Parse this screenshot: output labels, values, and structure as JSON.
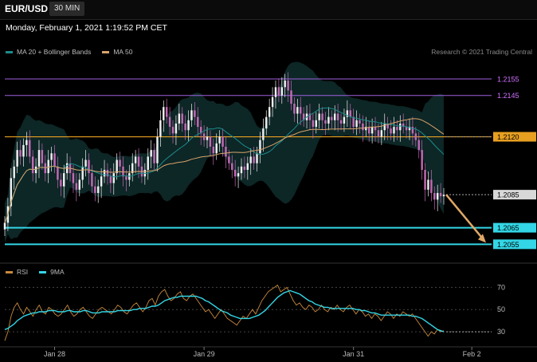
{
  "header": {
    "symbol": "EUR/USD",
    "timeframe": "30 MIN"
  },
  "datetime": "Monday, February 1, 2021 1:19:52 PM CET",
  "legend_main": [
    {
      "label": "MA 20 + Bollinger Bands",
      "color": "#1c8c8c"
    },
    {
      "label": "MA 50",
      "color": "#d9a46a"
    }
  ],
  "legend_rsi": [
    {
      "label": "RSI",
      "color": "#c98a3c"
    },
    {
      "label": "9MA",
      "color": "#33d6e6"
    }
  ],
  "credit": "Research © 2021 Trading Central",
  "colors": {
    "bull": "#f0f0f0",
    "bear": "#c46ab6",
    "band": "#0e2a2a",
    "ma20": "#1c8c8c",
    "ma50": "#d9a46a",
    "resistance_high": "#a060e0",
    "pivot": "#e8a020",
    "support": "#33d6e6",
    "arrow": "#e0a868"
  },
  "chart_data": [
    {
      "type": "candlestick",
      "ylim": [
        1.2046,
        1.2168
      ],
      "x_ticks": [
        {
          "label": "Jan 28",
          "index": 16
        },
        {
          "label": "Jan 29",
          "index": 64
        },
        {
          "label": "Jan 31",
          "index": 112
        },
        {
          "label": "Feb 2",
          "index": 150
        }
      ],
      "levels": [
        {
          "value": 1.2155,
          "label": "1.2155",
          "kind": "resistance_high"
        },
        {
          "value": 1.2145,
          "label": "1.2145",
          "kind": "resistance_high"
        },
        {
          "value": 1.212,
          "label": "1.2120",
          "kind": "pivot"
        },
        {
          "value": 1.2085,
          "label": "1.2085",
          "kind": "current"
        },
        {
          "value": 1.2065,
          "label": "1.2065",
          "kind": "support"
        },
        {
          "value": 1.2055,
          "label": "1.2055",
          "kind": "support"
        }
      ],
      "close": [
        1.2068,
        1.2078,
        1.2095,
        1.2102,
        1.2112,
        1.2108,
        1.2115,
        1.2118,
        1.2108,
        1.2098,
        1.2102,
        1.2112,
        1.2104,
        1.2098,
        1.2106,
        1.211,
        1.2102,
        1.2094,
        1.209,
        1.2098,
        1.2104,
        1.2098,
        1.2092,
        1.2088,
        1.2094,
        1.2102,
        1.2106,
        1.2098,
        1.209,
        1.2086,
        1.209,
        1.2096,
        1.21,
        1.2096,
        1.2092,
        1.2098,
        1.2106,
        1.2102,
        1.2096,
        1.2094,
        1.2098,
        1.2104,
        1.2108,
        1.2102,
        1.2096,
        1.21,
        1.2108,
        1.2112,
        1.2104,
        1.212,
        1.213,
        1.2138,
        1.2132,
        1.2126,
        1.2122,
        1.2128,
        1.2134,
        1.2128,
        1.2124,
        1.213,
        1.2136,
        1.2132,
        1.2126,
        1.2122,
        1.2118,
        1.212,
        1.2114,
        1.211,
        1.2116,
        1.212,
        1.2114,
        1.2108,
        1.2104,
        1.21,
        1.2096,
        1.2098,
        1.2102,
        1.21,
        1.2104,
        1.2108,
        1.2104,
        1.211,
        1.2118,
        1.2125,
        1.2132,
        1.2138,
        1.2144,
        1.215,
        1.2145,
        1.215,
        1.2154,
        1.2148,
        1.214,
        1.2134,
        1.2138,
        1.2134,
        1.213,
        1.2134,
        1.213,
        1.2126,
        1.213,
        1.2134,
        1.213,
        1.2128,
        1.2132,
        1.213,
        1.2134,
        1.213,
        1.2128,
        1.2132,
        1.2136,
        1.2132,
        1.2126,
        1.213,
        1.2128,
        1.2124,
        1.2126,
        1.2122,
        1.2126,
        1.2124,
        1.212,
        1.2124,
        1.2128,
        1.2125,
        1.2122,
        1.2126,
        1.2124,
        1.2128,
        1.2126,
        1.2124,
        1.2126,
        1.2122,
        1.2118,
        1.2112,
        1.21,
        1.2088,
        1.2094,
        1.2086,
        1.2082,
        1.2086,
        1.2084,
        1.2085
      ],
      "rsi": {
        "ylim": [
          20,
          76
        ],
        "ticks": [
          70,
          50,
          30
        ],
        "rsi": [
          22,
          30,
          44,
          52,
          56,
          50,
          46,
          52,
          48,
          44,
          50,
          54,
          48,
          46,
          52,
          50,
          46,
          44,
          46,
          50,
          54,
          48,
          44,
          46,
          50,
          52,
          48,
          44,
          42,
          46,
          50,
          52,
          50,
          48,
          46,
          50,
          54,
          52,
          48,
          46,
          50,
          54,
          56,
          52,
          48,
          52,
          58,
          60,
          54,
          62,
          66,
          68,
          62,
          58,
          60,
          64,
          66,
          60,
          58,
          62,
          64,
          60,
          56,
          52,
          48,
          50,
          46,
          42,
          46,
          50,
          46,
          42,
          40,
          38,
          36,
          40,
          44,
          42,
          46,
          50,
          46,
          52,
          58,
          62,
          66,
          68,
          70,
          72,
          66,
          68,
          70,
          64,
          58,
          54,
          56,
          52,
          50,
          54,
          52,
          48,
          50,
          54,
          50,
          48,
          52,
          50,
          54,
          50,
          48,
          52,
          54,
          50,
          46,
          50,
          48,
          44,
          46,
          42,
          46,
          44,
          40,
          44,
          48,
          46,
          42,
          46,
          44,
          48,
          46,
          44,
          46,
          42,
          38,
          34,
          30,
          26,
          30,
          28,
          32,
          30,
          31
        ],
        "ma9": [
          32,
          33,
          35,
          37,
          40,
          42,
          44,
          45,
          46,
          47,
          47,
          48,
          48,
          48,
          49,
          49,
          49,
          48,
          48,
          48,
          49,
          49,
          48,
          48,
          48,
          49,
          49,
          48,
          47,
          47,
          47,
          48,
          48,
          48,
          48,
          48,
          49,
          49,
          49,
          49,
          49,
          50,
          50,
          51,
          51,
          51,
          52,
          53,
          53,
          54,
          56,
          58,
          59,
          60,
          61,
          61,
          62,
          62,
          62,
          62,
          62,
          62,
          61,
          60,
          58,
          57,
          55,
          53,
          51,
          49,
          48,
          47,
          45,
          44,
          43,
          42,
          42,
          42,
          42,
          43,
          44,
          45,
          47,
          49,
          52,
          55,
          58,
          61,
          63,
          65,
          66,
          67,
          66,
          65,
          64,
          62,
          60,
          58,
          57,
          55,
          54,
          53,
          52,
          52,
          51,
          51,
          51,
          51,
          51,
          51,
          51,
          51,
          50,
          50,
          49,
          49,
          48,
          47,
          47,
          46,
          45,
          45,
          45,
          45,
          45,
          45,
          45,
          45,
          45,
          45,
          44,
          44,
          43,
          42,
          40,
          38,
          36,
          34,
          32,
          31,
          30
        ]
      }
    }
  ]
}
